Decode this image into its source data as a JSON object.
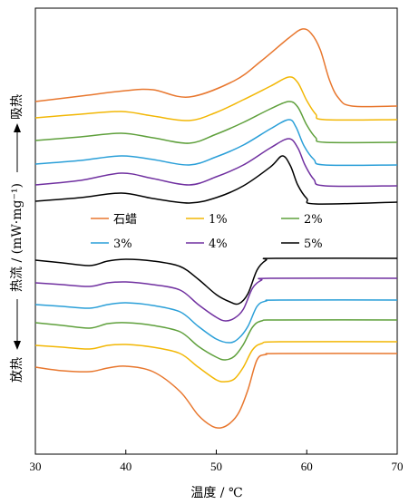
{
  "chart_data": {
    "type": "line",
    "xlabel": "温度 / ℃",
    "ylabel": "热流 / (mW·mg⁻¹)",
    "ylabel_top": "吸热",
    "ylabel_bottom": "放热",
    "xlim": [
      30,
      70
    ],
    "xticks": [
      "30",
      "40",
      "50",
      "60",
      "70"
    ],
    "y_ticks_shown": false,
    "grid": false,
    "legend_position": "center",
    "legend_columns": 3,
    "heating_series": [
      {
        "name": "石蜡",
        "color": "#e8772e",
        "points": [
          [
            30,
            112
          ],
          [
            35,
            106
          ],
          [
            40,
            100
          ],
          [
            43,
            99
          ],
          [
            47,
            107
          ],
          [
            52,
            89
          ],
          [
            55,
            67
          ],
          [
            58,
            42
          ],
          [
            59.5,
            32
          ],
          [
            60.5,
            37
          ],
          [
            61.5,
            55
          ],
          [
            62.5,
            88
          ],
          [
            63.5,
            108
          ],
          [
            65,
            117
          ],
          [
            70,
            117
          ]
        ]
      },
      {
        "name": "1%",
        "color": "#f2b705",
        "points": [
          [
            30,
            130
          ],
          [
            35,
            126
          ],
          [
            39.5,
            123
          ],
          [
            43,
            128
          ],
          [
            47,
            133
          ],
          [
            50,
            124
          ],
          [
            53,
            110
          ],
          [
            56,
            95
          ],
          [
            58,
            85
          ],
          [
            59,
            91
          ],
          [
            60,
            111
          ],
          [
            61,
            126
          ],
          [
            62,
            132
          ],
          [
            70,
            132
          ]
        ]
      },
      {
        "name": "2%",
        "color": "#5fa03c",
        "points": [
          [
            30,
            155
          ],
          [
            35,
            151
          ],
          [
            39.5,
            147
          ],
          [
            43,
            152
          ],
          [
            47,
            158
          ],
          [
            50,
            148
          ],
          [
            53,
            135
          ],
          [
            56,
            120
          ],
          [
            58,
            112
          ],
          [
            59,
            118
          ],
          [
            60,
            138
          ],
          [
            61,
            152
          ],
          [
            62,
            157
          ],
          [
            70,
            157
          ]
        ]
      },
      {
        "name": "3%",
        "color": "#2a9fd8",
        "points": [
          [
            30,
            181
          ],
          [
            35,
            177
          ],
          [
            39.5,
            172
          ],
          [
            43,
            176
          ],
          [
            47,
            182
          ],
          [
            50,
            173
          ],
          [
            53,
            160
          ],
          [
            56,
            142
          ],
          [
            58,
            132
          ],
          [
            58.8,
            140
          ],
          [
            59.7,
            161
          ],
          [
            60.8,
            176
          ],
          [
            62,
            182
          ],
          [
            70,
            182
          ]
        ]
      },
      {
        "name": "4%",
        "color": "#7030a0",
        "points": [
          [
            30,
            204
          ],
          [
            35,
            199
          ],
          [
            39.5,
            191
          ],
          [
            43,
            197
          ],
          [
            47,
            204
          ],
          [
            50,
            195
          ],
          [
            53,
            182
          ],
          [
            56,
            163
          ],
          [
            58,
            153
          ],
          [
            59,
            163
          ],
          [
            59.8,
            182
          ],
          [
            60.8,
            198
          ],
          [
            62,
            205
          ],
          [
            70,
            205
          ]
        ]
      },
      {
        "name": "5%",
        "color": "#000000",
        "points": [
          [
            30,
            222
          ],
          [
            35,
            218
          ],
          [
            39.5,
            213
          ],
          [
            43,
            219
          ],
          [
            47,
            224
          ],
          [
            50,
            218
          ],
          [
            53,
            205
          ],
          [
            56,
            184
          ],
          [
            57.3,
            172
          ],
          [
            58.2,
            183
          ],
          [
            59,
            204
          ],
          [
            60,
            219
          ],
          [
            61,
            225
          ],
          [
            70,
            223
          ]
        ]
      }
    ],
    "cooling_series": [
      {
        "name": "5%",
        "color": "#000000",
        "points": [
          [
            30,
            287
          ],
          [
            33,
            290
          ],
          [
            36,
            293
          ],
          [
            38,
            288
          ],
          [
            40,
            286
          ],
          [
            43,
            288
          ],
          [
            46,
            294
          ],
          [
            48,
            308
          ],
          [
            50,
            325
          ],
          [
            51.5,
            333
          ],
          [
            52.5,
            335
          ],
          [
            53.5,
            324
          ],
          [
            54.5,
            298
          ],
          [
            55.5,
            287
          ],
          [
            56.5,
            285
          ],
          [
            70,
            285
          ]
        ]
      },
      {
        "name": "4%",
        "color": "#7030a0",
        "points": [
          [
            30,
            312
          ],
          [
            33,
            314
          ],
          [
            36,
            316
          ],
          [
            38,
            312
          ],
          [
            40,
            311
          ],
          [
            43,
            314
          ],
          [
            46,
            320
          ],
          [
            48,
            336
          ],
          [
            50,
            350
          ],
          [
            51,
            354
          ],
          [
            52,
            351
          ],
          [
            53,
            341
          ],
          [
            54,
            318
          ],
          [
            55,
            309
          ],
          [
            56,
            307
          ],
          [
            70,
            307
          ]
        ]
      },
      {
        "name": "3%",
        "color": "#2a9fd8",
        "points": [
          [
            30,
            336
          ],
          [
            33,
            338
          ],
          [
            36,
            340
          ],
          [
            38,
            336
          ],
          [
            40,
            334
          ],
          [
            43,
            337
          ],
          [
            46,
            344
          ],
          [
            48,
            360
          ],
          [
            50,
            374
          ],
          [
            51.5,
            378
          ],
          [
            52.5,
            373
          ],
          [
            53.5,
            360
          ],
          [
            54.5,
            338
          ],
          [
            55.5,
            332
          ],
          [
            57,
            331
          ],
          [
            70,
            331
          ]
        ]
      },
      {
        "name": "2%",
        "color": "#5fa03c",
        "points": [
          [
            30,
            356
          ],
          [
            33,
            359
          ],
          [
            36,
            362
          ],
          [
            38,
            357
          ],
          [
            40,
            356
          ],
          [
            43,
            359
          ],
          [
            46,
            366
          ],
          [
            48,
            382
          ],
          [
            50,
            394
          ],
          [
            51,
            397
          ],
          [
            52,
            393
          ],
          [
            53,
            380
          ],
          [
            54,
            361
          ],
          [
            55,
            354
          ],
          [
            57,
            353
          ],
          [
            70,
            353
          ]
        ]
      },
      {
        "name": "1%",
        "color": "#f2b705",
        "points": [
          [
            30,
            381
          ],
          [
            33,
            383
          ],
          [
            36,
            385
          ],
          [
            38,
            381
          ],
          [
            40,
            380
          ],
          [
            43,
            383
          ],
          [
            46,
            390
          ],
          [
            48,
            405
          ],
          [
            50,
            419
          ],
          [
            51,
            421
          ],
          [
            52,
            418
          ],
          [
            53,
            405
          ],
          [
            54,
            386
          ],
          [
            55,
            379
          ],
          [
            57,
            377
          ],
          [
            70,
            377
          ]
        ]
      },
      {
        "name": "石蜡",
        "color": "#e8772e",
        "points": [
          [
            30,
            405
          ],
          [
            33,
            409
          ],
          [
            36,
            410
          ],
          [
            38,
            406
          ],
          [
            40,
            404
          ],
          [
            43,
            410
          ],
          [
            46,
            432
          ],
          [
            48,
            458
          ],
          [
            49.5,
            470
          ],
          [
            50.5,
            472
          ],
          [
            51.5,
            467
          ],
          [
            52.5,
            455
          ],
          [
            53.5,
            430
          ],
          [
            54.5,
            397
          ],
          [
            55.5,
            391
          ],
          [
            57,
            390
          ],
          [
            70,
            390
          ]
        ]
      }
    ],
    "legend": [
      {
        "label": "石蜡",
        "color": "#e8772e"
      },
      {
        "label": "1%",
        "color": "#f2b705"
      },
      {
        "label": "2%",
        "color": "#5fa03c"
      },
      {
        "label": "3%",
        "color": "#2a9fd8"
      },
      {
        "label": "4%",
        "color": "#7030a0"
      },
      {
        "label": "5%",
        "color": "#000000"
      }
    ]
  }
}
